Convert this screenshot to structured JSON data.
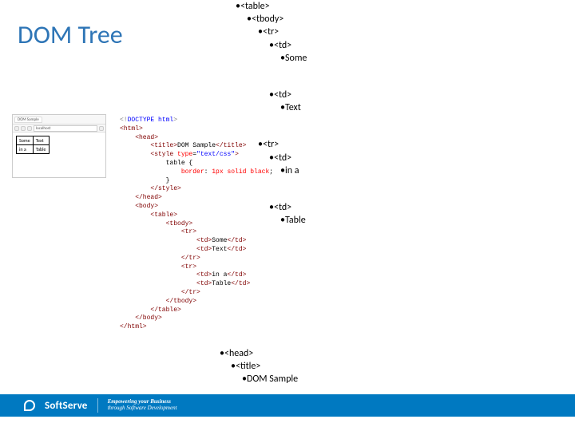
{
  "title": "DOM Tree",
  "colors": {
    "title": "#2e75b6",
    "footer_bg": "#0079c1",
    "code_tag": "#800000",
    "code_attr": "#ff0000",
    "code_val": "#0000ff",
    "code_text": "#000000"
  },
  "browser": {
    "tab_label": "DOM Sample",
    "address": "localhost",
    "table": {
      "rows": [
        [
          "Some",
          "Text"
        ],
        [
          "in a",
          "Table"
        ]
      ]
    }
  },
  "code": {
    "doctype": "<!DOCTYPE html>",
    "title_text": "DOM Sample",
    "style_type": "\"text/css\"",
    "css_selector": "table {",
    "css_prop": "border",
    "css_val": "1px solid black",
    "td1": "Some",
    "td2": "Text",
    "td3": "in a",
    "td4": "Table"
  },
  "tree_right": [
    {
      "indent": 0,
      "text": "<table>"
    },
    {
      "indent": 1,
      "text": "<tbody>"
    },
    {
      "indent": 2,
      "text": "<tr>"
    },
    {
      "indent": 3,
      "text": "<td>"
    },
    {
      "indent": 4,
      "text": "Some"
    },
    {
      "gap": true
    },
    {
      "indent": 3,
      "text": "<td>"
    },
    {
      "indent": 4,
      "text": "Text"
    },
    {
      "gap": true
    },
    {
      "indent": 2,
      "text": "<tr>"
    },
    {
      "indent": 3,
      "text": "<td>"
    },
    {
      "indent": 4,
      "text": "in a"
    },
    {
      "gap": true
    },
    {
      "indent": 3,
      "text": "<td>"
    },
    {
      "indent": 4,
      "text": "Table"
    }
  ],
  "tree_bottom": [
    {
      "indent": 0,
      "text": "<head>"
    },
    {
      "indent": 1,
      "text": "<title>"
    },
    {
      "indent": 2,
      "text": "DOM Sample"
    }
  ],
  "footer": {
    "brand": "SoftServe",
    "tagline_bold": "Empowering your Business",
    "tagline_small": "through Software Development"
  }
}
